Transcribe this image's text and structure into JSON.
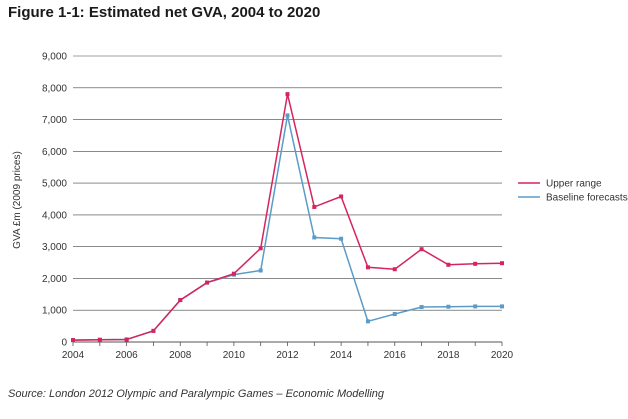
{
  "figure": {
    "title": "Figure 1-1:  Estimated net GVA, 2004 to 2020",
    "source": "Source: London 2012 Olympic and Paralympic Games – Economic Modelling"
  },
  "chart_data": {
    "type": "line",
    "title": "Figure 1-1:  Estimated net GVA, 2004 to 2020",
    "xlabel": "",
    "ylabel": "GVA £m (2009 prices)",
    "xlim": [
      2004,
      2020
    ],
    "ylim": [
      0,
      9000
    ],
    "xticks": [
      "2004",
      "2006",
      "2008",
      "2010",
      "2012",
      "2014",
      "2016",
      "2018",
      "2020"
    ],
    "yticks": [
      "0",
      "1,000",
      "2,000",
      "3,000",
      "4,000",
      "5,000",
      "6,000",
      "7,000",
      "8,000",
      "9,000"
    ],
    "grid": "horizontal",
    "legend_position": "right",
    "x": [
      2004,
      2005,
      2006,
      2007,
      2008,
      2009,
      2010,
      2011,
      2012,
      2013,
      2014,
      2015,
      2016,
      2017,
      2018,
      2019,
      2020
    ],
    "series": [
      {
        "name": "Upper range",
        "color": "#d6245e",
        "values": [
          60,
          70,
          80,
          350,
          1320,
          1870,
          2150,
          2950,
          7800,
          4250,
          4580,
          2350,
          2290,
          2920,
          2430,
          2460,
          2480
        ]
      },
      {
        "name": "Baseline forecasts",
        "color": "#5b9bc8",
        "values": [
          60,
          70,
          80,
          350,
          1320,
          1870,
          2120,
          2250,
          7130,
          3290,
          3250,
          650,
          880,
          1100,
          1110,
          1120,
          1120
        ]
      }
    ]
  }
}
